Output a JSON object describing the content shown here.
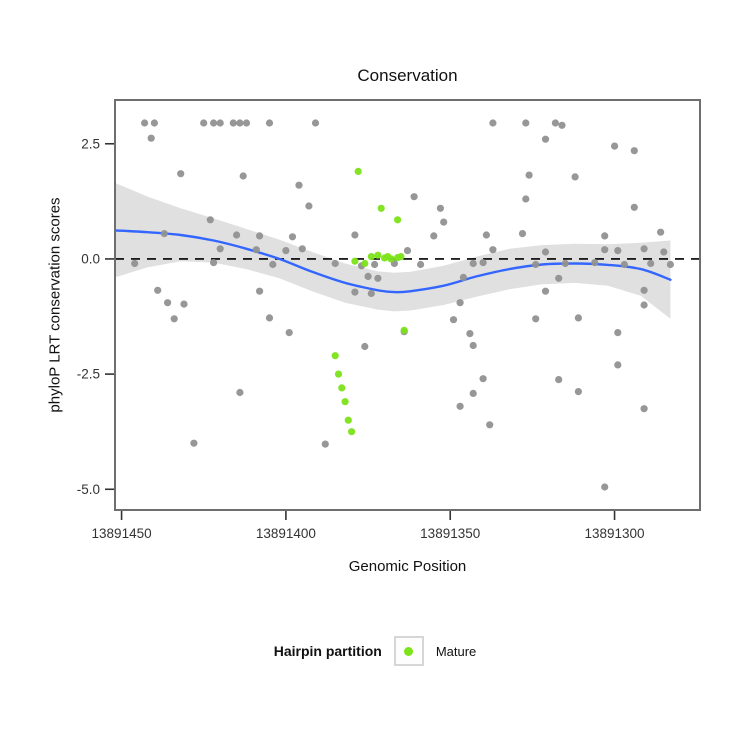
{
  "title": "Conservation",
  "legend": {
    "title": "Hairpin partition",
    "items": [
      {
        "label": "Mature",
        "color": "#7CE31A"
      }
    ]
  },
  "colors": {
    "other_points": "#919191",
    "mature_points": "#7CE31A",
    "smooth_line": "#3366FF",
    "band": "#999999",
    "panel_border": "#6E6E6E",
    "zero_line": "#000000",
    "tick": "#333333",
    "tick_label": "#333333"
  },
  "chart_data": {
    "type": "scatter",
    "title": "Conservation",
    "xlabel": "Genomic Position",
    "ylabel": "phyloP LRT conservation scores",
    "x_reversed": true,
    "x_range": [
      13891452,
      13891274
    ],
    "y_range": [
      -5.45,
      3.45
    ],
    "x_ticks": [
      13891450,
      13891400,
      13891350,
      13891300
    ],
    "x_tick_labels": [
      "13891450",
      "13891400",
      "13891350",
      "13891300"
    ],
    "y_ticks": [
      2.5,
      0.0,
      -2.5,
      -5.0
    ],
    "y_tick_labels": [
      "2.5",
      "0.0",
      "-2.5",
      "-5.0"
    ],
    "hline_y": 0.0,
    "legend_position": "bottom",
    "grid": false,
    "series": [
      {
        "name": "Other",
        "color": "#919191",
        "points": [
          [
            13891443,
            2.95
          ],
          [
            13891440,
            2.95
          ],
          [
            13891425,
            2.95
          ],
          [
            13891422,
            2.95
          ],
          [
            13891420,
            2.95
          ],
          [
            13891416,
            2.95
          ],
          [
            13891414,
            2.95
          ],
          [
            13891412,
            2.95
          ],
          [
            13891405,
            2.95
          ],
          [
            13891391,
            2.95
          ],
          [
            13891337,
            2.95
          ],
          [
            13891327,
            2.95
          ],
          [
            13891318,
            2.95
          ],
          [
            13891316,
            2.9
          ],
          [
            13891441,
            2.62
          ],
          [
            13891321,
            2.6
          ],
          [
            13891300,
            2.45
          ],
          [
            13891294,
            2.35
          ],
          [
            13891432,
            1.85
          ],
          [
            13891413,
            1.8
          ],
          [
            13891326,
            1.82
          ],
          [
            13891312,
            1.78
          ],
          [
            13891396,
            1.6
          ],
          [
            13891361,
            1.35
          ],
          [
            13891327,
            1.3
          ],
          [
            13891393,
            1.15
          ],
          [
            13891353,
            1.1
          ],
          [
            13891294,
            1.12
          ],
          [
            13891423,
            0.85
          ],
          [
            13891352,
            0.8
          ],
          [
            13891437,
            0.55
          ],
          [
            13891415,
            0.52
          ],
          [
            13891408,
            0.5
          ],
          [
            13891398,
            0.48
          ],
          [
            13891379,
            0.52
          ],
          [
            13891355,
            0.5
          ],
          [
            13891339,
            0.52
          ],
          [
            13891328,
            0.55
          ],
          [
            13891303,
            0.5
          ],
          [
            13891286,
            0.58
          ],
          [
            13891420,
            0.22
          ],
          [
            13891409,
            0.2
          ],
          [
            13891400,
            0.18
          ],
          [
            13891395,
            0.22
          ],
          [
            13891363,
            0.18
          ],
          [
            13891337,
            0.2
          ],
          [
            13891321,
            0.15
          ],
          [
            13891303,
            0.2
          ],
          [
            13891299,
            0.18
          ],
          [
            13891291,
            0.22
          ],
          [
            13891285,
            0.15
          ],
          [
            13891446,
            -0.1
          ],
          [
            13891422,
            -0.08
          ],
          [
            13891404,
            -0.12
          ],
          [
            13891385,
            -0.1
          ],
          [
            13891377,
            -0.15
          ],
          [
            13891373,
            -0.12
          ],
          [
            13891367,
            -0.1
          ],
          [
            13891359,
            -0.12
          ],
          [
            13891343,
            -0.1
          ],
          [
            13891340,
            -0.08
          ],
          [
            13891324,
            -0.12
          ],
          [
            13891315,
            -0.1
          ],
          [
            13891306,
            -0.08
          ],
          [
            13891297,
            -0.12
          ],
          [
            13891289,
            -0.1
          ],
          [
            13891283,
            -0.12
          ],
          [
            13891375,
            -0.38
          ],
          [
            13891372,
            -0.42
          ],
          [
            13891346,
            -0.4
          ],
          [
            13891317,
            -0.42
          ],
          [
            13891439,
            -0.68
          ],
          [
            13891408,
            -0.7
          ],
          [
            13891379,
            -0.72
          ],
          [
            13891374,
            -0.75
          ],
          [
            13891321,
            -0.7
          ],
          [
            13891291,
            -0.68
          ],
          [
            13891436,
            -0.95
          ],
          [
            13891431,
            -0.98
          ],
          [
            13891347,
            -0.95
          ],
          [
            13891291,
            -1.0
          ],
          [
            13891434,
            -1.3
          ],
          [
            13891405,
            -1.28
          ],
          [
            13891349,
            -1.32
          ],
          [
            13891324,
            -1.3
          ],
          [
            13891311,
            -1.28
          ],
          [
            13891399,
            -1.6
          ],
          [
            13891364,
            -1.58
          ],
          [
            13891344,
            -1.62
          ],
          [
            13891299,
            -1.6
          ],
          [
            13891376,
            -1.9
          ],
          [
            13891343,
            -1.88
          ],
          [
            13891299,
            -2.3
          ],
          [
            13891340,
            -2.6
          ],
          [
            13891317,
            -2.62
          ],
          [
            13891414,
            -2.9
          ],
          [
            13891343,
            -2.92
          ],
          [
            13891311,
            -2.88
          ],
          [
            13891347,
            -3.2
          ],
          [
            13891291,
            -3.25
          ],
          [
            13891338,
            -3.6
          ],
          [
            13891428,
            -4.0
          ],
          [
            13891388,
            -4.02
          ],
          [
            13891303,
            -4.95
          ]
        ]
      },
      {
        "name": "Mature",
        "color": "#7CE31A",
        "points": [
          [
            13891378,
            1.9
          ],
          [
            13891371,
            1.1
          ],
          [
            13891366,
            0.85
          ],
          [
            13891374,
            0.05
          ],
          [
            13891372,
            0.08
          ],
          [
            13891370,
            0.02
          ],
          [
            13891369,
            0.05
          ],
          [
            13891368,
            0.0
          ],
          [
            13891366,
            0.03
          ],
          [
            13891365,
            0.05
          ],
          [
            13891376,
            -0.1
          ],
          [
            13891379,
            -0.05
          ],
          [
            13891364,
            -1.55
          ],
          [
            13891385,
            -2.1
          ],
          [
            13891384,
            -2.5
          ],
          [
            13891383,
            -2.8
          ],
          [
            13891382,
            -3.1
          ],
          [
            13891381,
            -3.5
          ],
          [
            13891380,
            -3.75
          ]
        ]
      }
    ],
    "smooth": {
      "name": "loess fit with confidence band",
      "x": [
        13891452,
        13891442,
        13891432,
        13891422,
        13891412,
        13891402,
        13891392,
        13891382,
        13891372,
        13891367,
        13891362,
        13891352,
        13891342,
        13891332,
        13891322,
        13891312,
        13891302,
        13891292,
        13891283
      ],
      "fit": [
        0.62,
        0.58,
        0.52,
        0.4,
        0.22,
        0.0,
        -0.28,
        -0.52,
        -0.68,
        -0.72,
        -0.7,
        -0.58,
        -0.38,
        -0.22,
        -0.12,
        -0.1,
        -0.13,
        -0.22,
        -0.45
      ],
      "upper": [
        1.65,
        1.35,
        1.1,
        0.88,
        0.65,
        0.42,
        0.15,
        -0.1,
        -0.27,
        -0.3,
        -0.28,
        -0.15,
        0.05,
        0.22,
        0.3,
        0.33,
        0.32,
        0.35,
        0.4
      ],
      "lower": [
        -0.4,
        -0.18,
        -0.05,
        -0.08,
        -0.22,
        -0.42,
        -0.7,
        -0.95,
        -1.1,
        -1.14,
        -1.12,
        -1.0,
        -0.82,
        -0.66,
        -0.55,
        -0.52,
        -0.58,
        -0.8,
        -1.3
      ]
    }
  }
}
